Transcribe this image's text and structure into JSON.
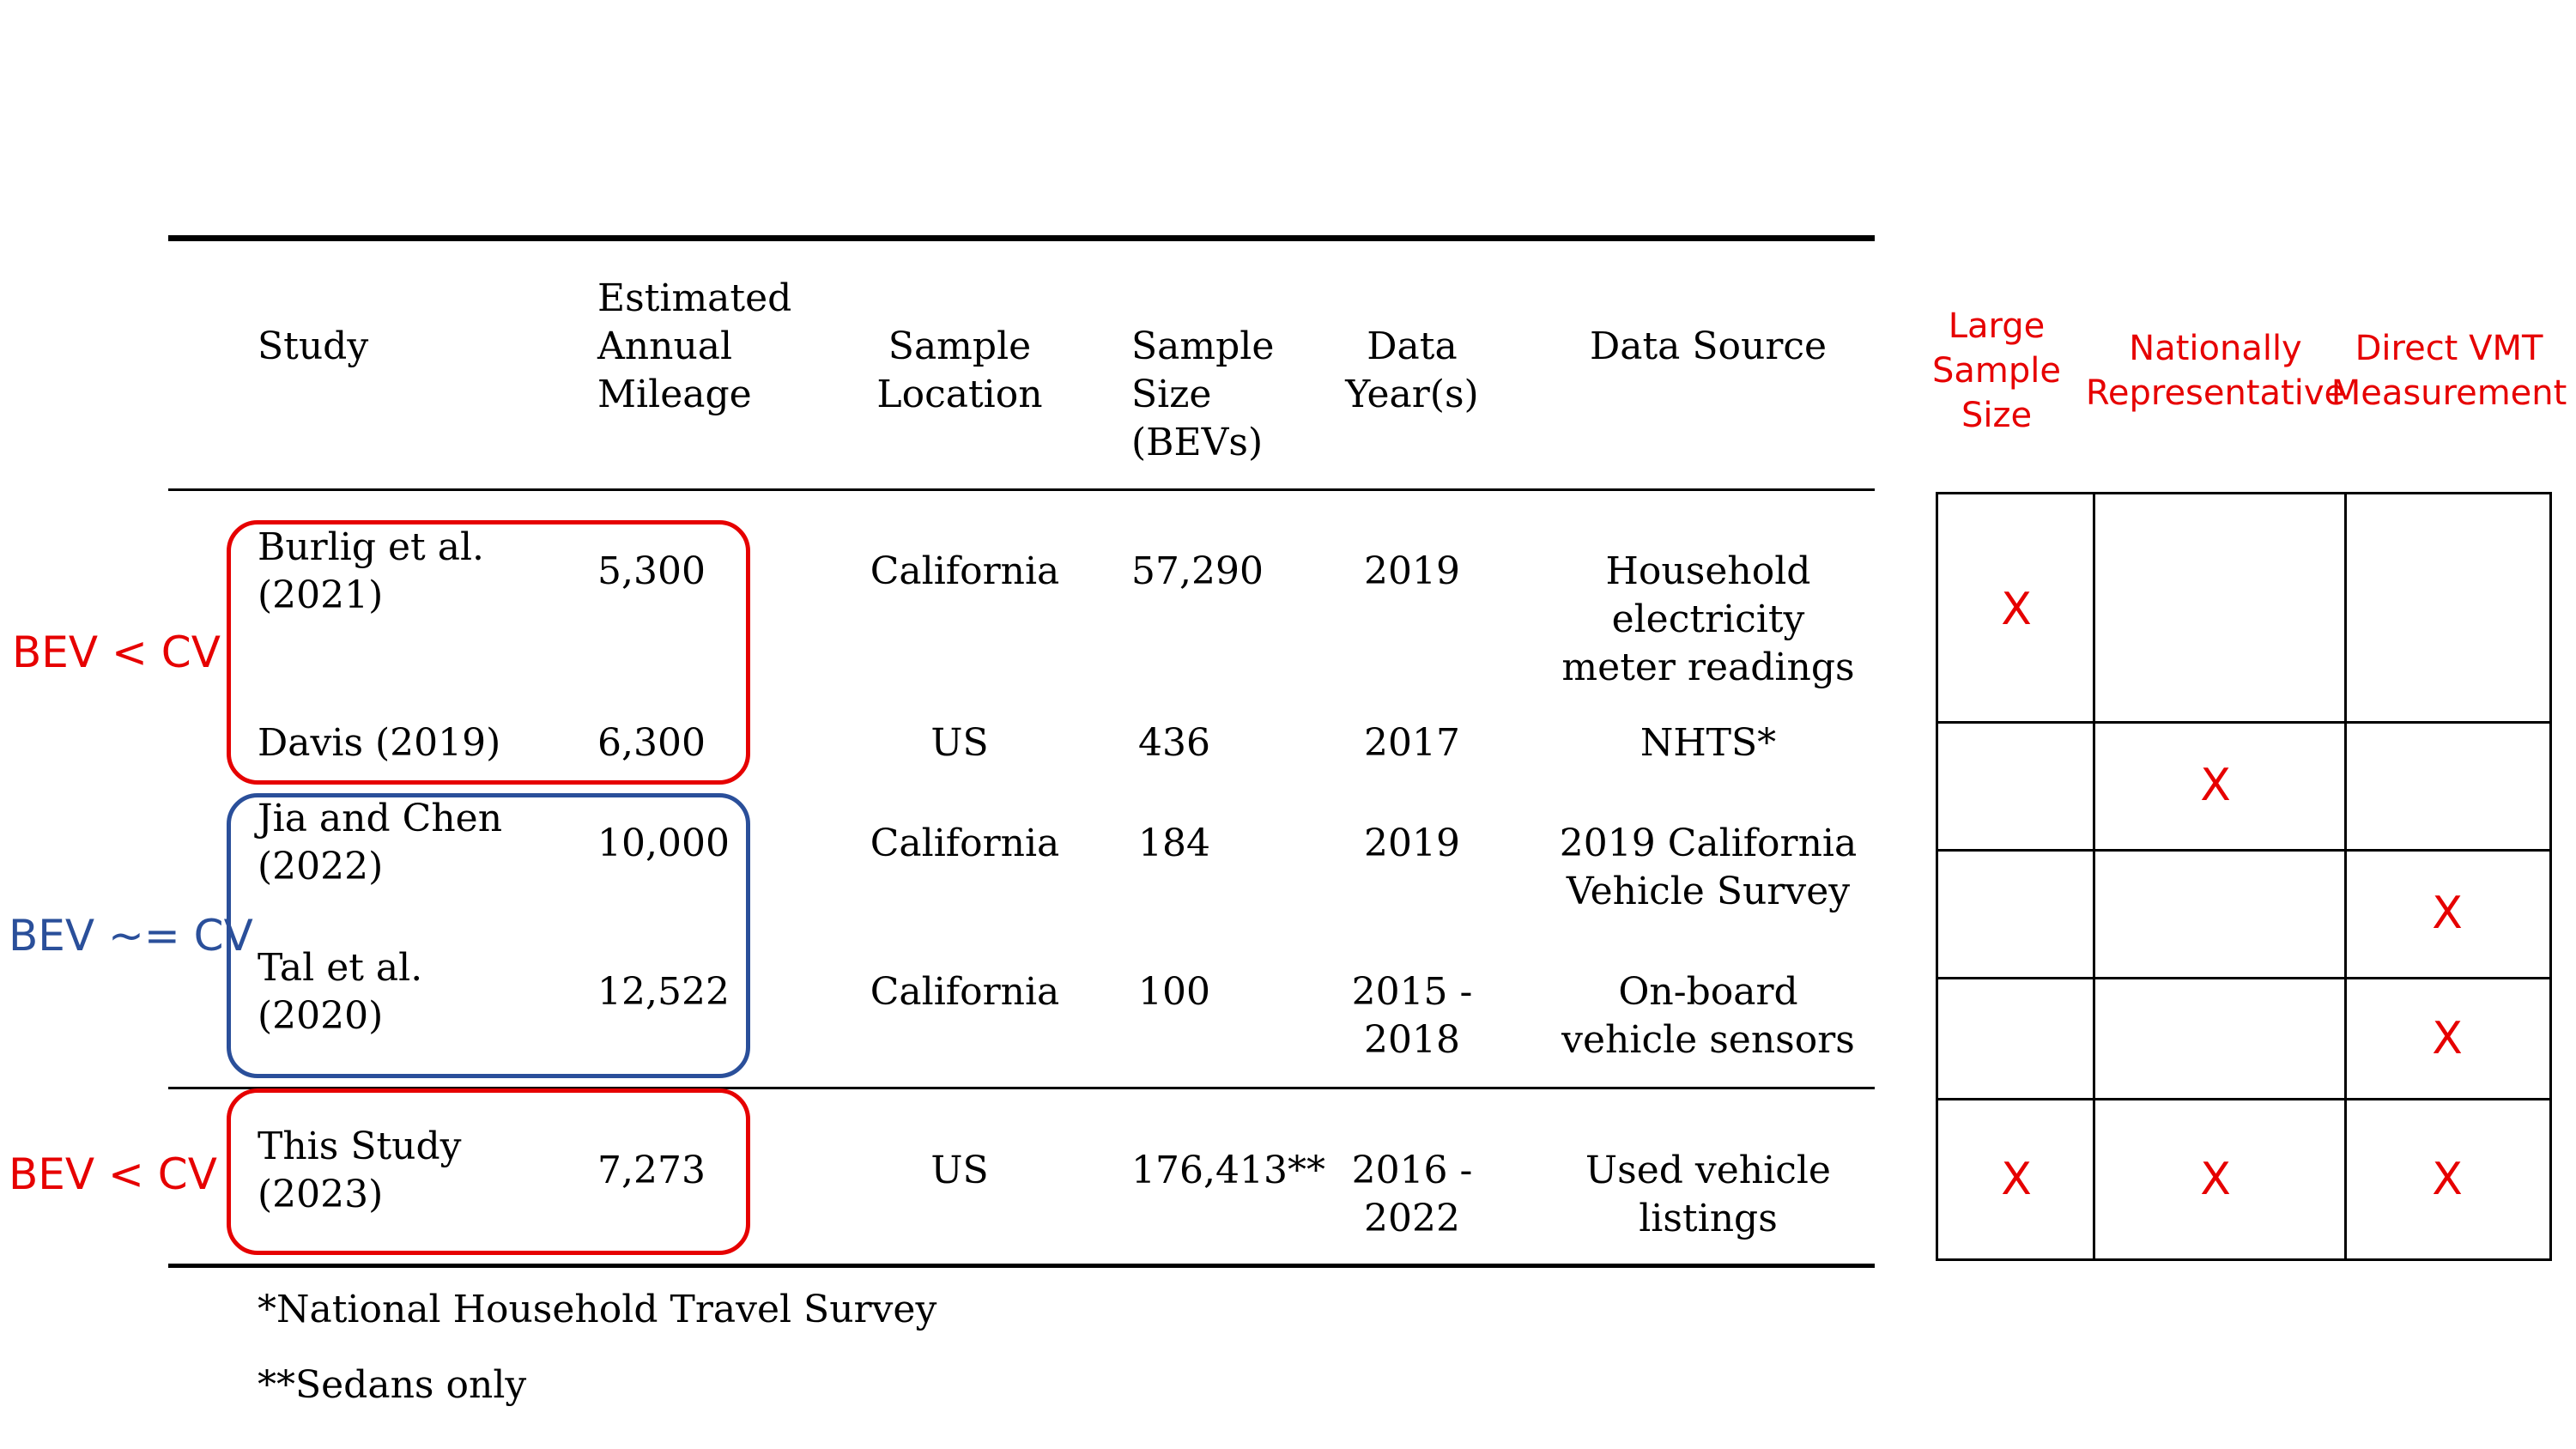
{
  "table": {
    "headers": {
      "study": "Study",
      "mileage": "Estimated\nAnnual\nMileage",
      "location": "Sample\nLocation",
      "size": "Sample\nSize\n(BEVs)",
      "year": "Data\nYear(s)",
      "source": "Data Source"
    },
    "rows": [
      {
        "study": "Burlig  et  al.\n(2021)",
        "mileage": "5,300",
        "location": "California",
        "size": "57,290",
        "year": "2019",
        "source": "Household\nelectricity\nmeter readings"
      },
      {
        "study": "Davis (2019)",
        "mileage": "6,300",
        "location": "US",
        "size": "436",
        "year": "2017",
        "source": "NHTS*"
      },
      {
        "study": "Jia and Chen\n(2022)",
        "mileage": "10,000",
        "location": "California",
        "size": "184",
        "year": "2019",
        "source": "2019 California\nVehicle Survey"
      },
      {
        "study": "Tal     et     al.\n(2020)",
        "mileage": "12,522",
        "location": "California",
        "size": "100",
        "year": "2015 -\n2018",
        "source": "On-board\nvehicle sensors"
      },
      {
        "study": "This     Study\n(2023)",
        "mileage": "7,273",
        "location": "US",
        "size": "176,413**",
        "year": "2016 -\n2022",
        "source": "Used vehicle\nlistings"
      }
    ],
    "footnotes": [
      "*National Household Travel Survey",
      "**Sedans only"
    ]
  },
  "groups": [
    {
      "label": "BEV < CV",
      "color": "#e60000"
    },
    {
      "label": "BEV ~= CV",
      "color": "#2a4f9a"
    },
    {
      "label": "BEV < CV",
      "color": "#e60000"
    }
  ],
  "criteria": {
    "headers": [
      "Large\nSample\nSize",
      "Nationally\nRepresentative",
      "Direct VMT\nMeasurement"
    ],
    "mark": "X",
    "matrix": [
      [
        true,
        false,
        false
      ],
      [
        false,
        true,
        false
      ],
      [
        false,
        false,
        true
      ],
      [
        false,
        false,
        true
      ],
      [
        true,
        true,
        true
      ]
    ]
  }
}
